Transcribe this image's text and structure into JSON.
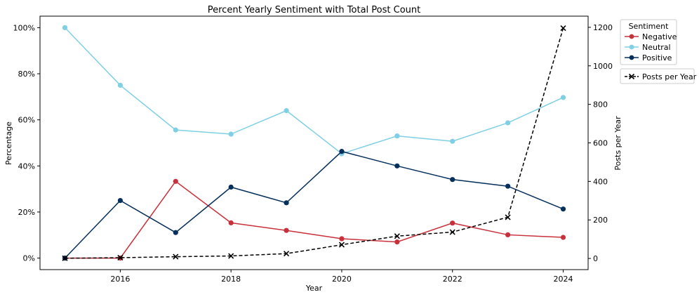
{
  "chart_data": {
    "type": "line",
    "title": "Percent Yearly Sentiment with Total Post Count",
    "xlabel": "Year",
    "ylabel_left": "Percentage",
    "ylabel_right": "Posts per Year",
    "x": [
      2015,
      2016,
      2017,
      2018,
      2019,
      2020,
      2021,
      2022,
      2023,
      2024
    ],
    "x_ticks": [
      "2016",
      "2018",
      "2020",
      "2022",
      "2024"
    ],
    "y_left_ticks": [
      "0%",
      "20%",
      "40%",
      "60%",
      "80%",
      "100%"
    ],
    "y_right_ticks": [
      "0",
      "200",
      "400",
      "600",
      "800",
      "1000",
      "1200"
    ],
    "ylim_left": [
      -5,
      105
    ],
    "ylim_right": [
      -58,
      1258
    ],
    "xlim": [
      2014.55,
      2024.45
    ],
    "grid": false,
    "legend_title": "Sentiment",
    "legend_position": "outside-top-right",
    "series": [
      {
        "name": "Negative",
        "axis": "left",
        "color": "#c8313b",
        "marker": "o",
        "linestyle": "solid",
        "values": [
          0,
          0,
          33.3,
          15.3,
          12,
          8.4,
          7,
          15.2,
          10.1,
          9
        ]
      },
      {
        "name": "Neutral",
        "axis": "left",
        "color": "#7fcfe5",
        "marker": "o",
        "linestyle": "solid",
        "values": [
          100,
          75,
          55.6,
          53.8,
          64,
          45.3,
          53,
          50.7,
          58.7,
          69.7
        ]
      },
      {
        "name": "Positive",
        "axis": "left",
        "color": "#06305c",
        "marker": "o",
        "linestyle": "solid",
        "values": [
          0,
          25,
          11.1,
          30.8,
          24,
          46.3,
          40,
          34.1,
          31.2,
          21.3
        ]
      },
      {
        "name": "Posts per Year",
        "axis": "right",
        "color": "#000000",
        "marker": "x",
        "linestyle": "dashed",
        "values": [
          1,
          4,
          9,
          13,
          25,
          71,
          116,
          137,
          214,
          1196
        ]
      }
    ]
  }
}
